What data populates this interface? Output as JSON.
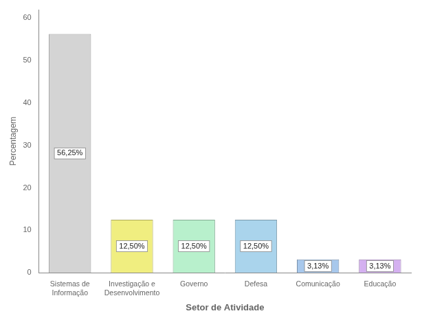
{
  "chart_data": {
    "type": "bar",
    "categories": [
      "Sistemas de\nInformação",
      "Investigação e\nDesenvolvimento",
      "Governo",
      "Defesa",
      "Comunicação",
      "Educação"
    ],
    "values": [
      56.25,
      12.5,
      12.5,
      12.5,
      3.13,
      3.13
    ],
    "value_labels": [
      "56,25%",
      "12,50%",
      "12,50%",
      "12,50%",
      "3,13%",
      "3,13%"
    ],
    "data_labels": true,
    "colors": [
      "#d4d4d4",
      "#f0ee80",
      "#b8f0cc",
      "#aad4ec",
      "#a8c8ec",
      "#d4b0f0"
    ],
    "xlabel": "Setor de Atividade",
    "ylabel": "Percentagem",
    "ylim": [
      0,
      62
    ],
    "yticks": [
      0,
      10,
      20,
      30,
      40,
      50,
      60
    ],
    "grid": false
  }
}
